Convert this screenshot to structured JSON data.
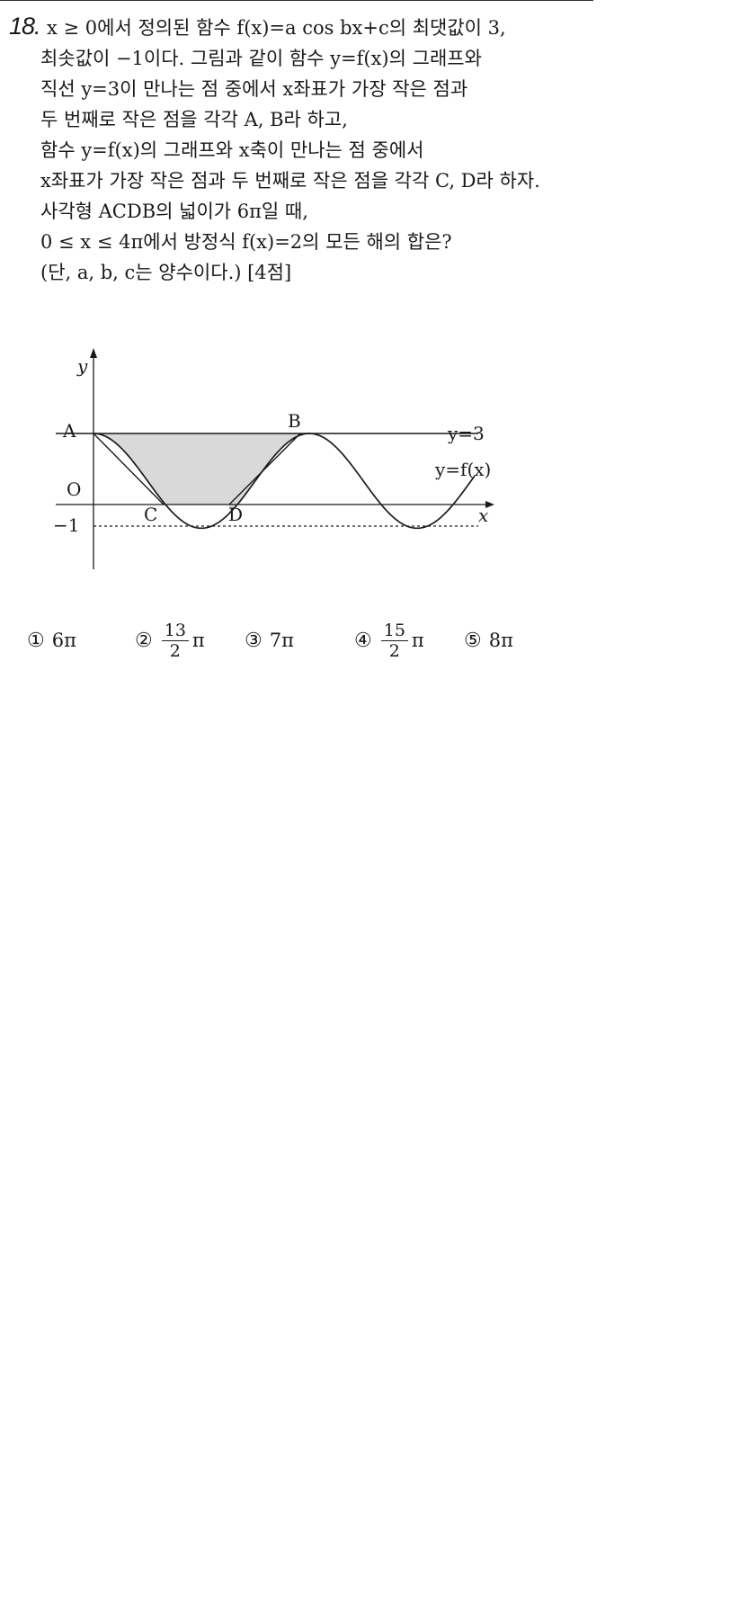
{
  "problem": {
    "number": "18.",
    "lines": [
      "x ≥ 0에서 정의된 함수 f(x)=a cos bx+c의 최댓값이 3,",
      "최솟값이 −1이다. 그림과 같이 함수 y=f(x)의 그래프와",
      "직선 y=3이 만나는 점 중에서 x좌표가 가장 작은 점과",
      "두 번째로 작은 점을 각각 A, B라 하고,",
      "함수 y=f(x)의 그래프와 x축이 만나는 점 중에서",
      "x좌표가 가장 작은 점과 두 번째로 작은 점을 각각 C, D라 하자.",
      "사각형 ACDB의 넓이가 6π일 때,",
      "0 ≤ x ≤ 4π에서 방정식 f(x)=2의 모든 해의 합은?",
      "(단, a, b, c는 양수이다.) [4점]"
    ]
  },
  "figure": {
    "axis_y": "y",
    "axis_x": "x",
    "origin": "O",
    "minus_one": "−1",
    "point_a": "A",
    "point_b": "B",
    "point_c": "C",
    "point_d": "D",
    "line_label": "y=3",
    "curve_label": "y=f(x)",
    "colors": {
      "shade": "#d9d9d9",
      "ink": "#1a1a1a"
    }
  },
  "choices": [
    {
      "num": "①",
      "text": "6π"
    },
    {
      "num": "②",
      "numerator": "13",
      "denominator": "2",
      "suffix": "π"
    },
    {
      "num": "③",
      "text": "7π"
    },
    {
      "num": "④",
      "numerator": "15",
      "denominator": "2",
      "suffix": "π"
    },
    {
      "num": "⑤",
      "text": "8π"
    }
  ]
}
